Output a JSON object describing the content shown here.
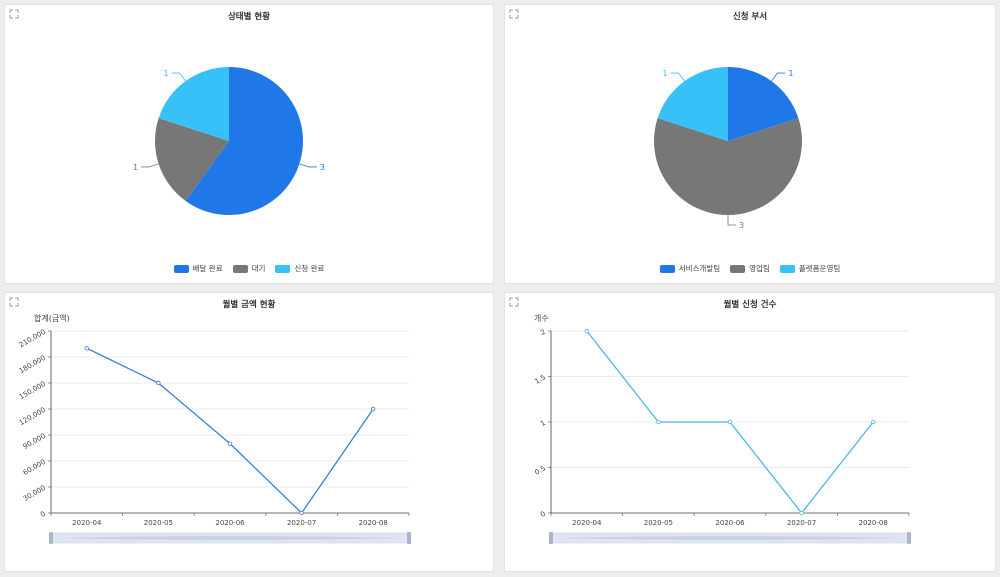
{
  "panels": {
    "status": {
      "title": "상태별 현황",
      "chart_data": {
        "type": "pie",
        "slices": [
          {
            "name": "배달 완료",
            "value": 3,
            "color": "#1f77e8"
          },
          {
            "name": "대기",
            "value": 1,
            "color": "#777777"
          },
          {
            "name": "신청 완료",
            "value": 1,
            "color": "#38c0f8"
          }
        ]
      }
    },
    "dept": {
      "title": "신청 부서",
      "chart_data": {
        "type": "pie",
        "slices": [
          {
            "name": "서비스개발팀",
            "value": 1,
            "color": "#1f77e8"
          },
          {
            "name": "영업팀",
            "value": 3,
            "color": "#777777"
          },
          {
            "name": "플랫폼운영팀",
            "value": 1,
            "color": "#38c0f8"
          }
        ]
      }
    },
    "monthly_amount": {
      "title": "월별 금액 현황",
      "y_unit": "합계(금액)",
      "chart_data": {
        "type": "line",
        "categories": [
          "2020-04",
          "2020-05",
          "2020-06",
          "2020-07",
          "2020-08"
        ],
        "series": [
          {
            "values": [
              190000,
              150000,
              80000,
              0,
              120000
            ],
            "color": "#3a7fd8"
          }
        ],
        "ylim": [
          0,
          210000
        ],
        "yticks": [
          0,
          30000,
          60000,
          90000,
          120000,
          150000,
          180000,
          210000
        ],
        "ytick_labels": [
          "0",
          "30,000",
          "60,000",
          "90,000",
          "120,000",
          "150,000",
          "180,000",
          "210,000"
        ],
        "grid": true
      }
    },
    "monthly_count": {
      "title": "월별 신청 건수",
      "y_unit": "개수",
      "chart_data": {
        "type": "line",
        "categories": [
          "2020-04",
          "2020-05",
          "2020-06",
          "2020-07",
          "2020-08"
        ],
        "series": [
          {
            "values": [
              2,
              1,
              1,
              0,
              1
            ],
            "color": "#4bb6e8"
          }
        ],
        "ylim": [
          0,
          2
        ],
        "yticks": [
          0,
          0.5,
          1,
          1.5,
          2
        ],
        "ytick_labels": [
          "0",
          "0.5",
          "1",
          "1.5",
          "2"
        ],
        "grid": true
      }
    }
  }
}
